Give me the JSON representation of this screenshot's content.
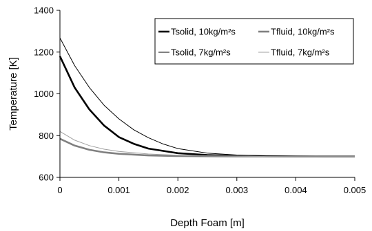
{
  "chart_data": {
    "type": "line",
    "xlabel": "Depth Foam  [m]",
    "ylabel": "Temperature [K]",
    "xlim": [
      0,
      0.005
    ],
    "ylim": [
      600,
      1400
    ],
    "xticks": [
      0,
      0.001,
      0.002,
      0.003,
      0.004,
      0.005
    ],
    "xtick_labels": [
      "0",
      "0.001",
      "0.002",
      "0.003",
      "0.004",
      "0.005"
    ],
    "yticks": [
      600,
      800,
      1000,
      1200,
      1400
    ],
    "ytick_labels": [
      "600",
      "800",
      "1000",
      "1200",
      "1400"
    ],
    "grid": false,
    "legend": "top-right",
    "series": [
      {
        "name": "Tsolid, 10kg/m²s",
        "color": "#000000",
        "style": "thick",
        "x": [
          0,
          0.00025,
          0.0005,
          0.00075,
          0.001,
          0.00125,
          0.0015,
          0.002,
          0.0025,
          0.003,
          0.0035,
          0.004,
          0.0045,
          0.005
        ],
        "y": [
          1180,
          1030,
          925,
          848,
          793,
          761,
          738,
          716,
          707,
          703,
          701,
          700,
          700,
          700
        ]
      },
      {
        "name": "Tfluid, 10kg/m²s",
        "color": "#808080",
        "style": "thick",
        "x": [
          0,
          0.00025,
          0.0005,
          0.00075,
          0.001,
          0.0015,
          0.002,
          0.0025,
          0.003,
          0.0035,
          0.004,
          0.0045,
          0.005
        ],
        "y": [
          785,
          752,
          732,
          720,
          713,
          705,
          702,
          701,
          700,
          700,
          700,
          700,
          700
        ]
      },
      {
        "name": "Tsolid, 7kg/m²s",
        "color": "#000000",
        "style": "thin",
        "x": [
          0,
          0.00025,
          0.0005,
          0.00075,
          0.001,
          0.00125,
          0.0015,
          0.00175,
          0.002,
          0.0025,
          0.003,
          0.0035,
          0.004,
          0.0045,
          0.005
        ],
        "y": [
          1268,
          1135,
          1030,
          945,
          880,
          828,
          790,
          760,
          738,
          716,
          707,
          703,
          701,
          700,
          700
        ]
      },
      {
        "name": "Tfluid, 7kg/m²s",
        "color": "#a0a0a0",
        "style": "thin",
        "x": [
          0,
          0.00025,
          0.0005,
          0.00075,
          0.001,
          0.0015,
          0.002,
          0.0025,
          0.003,
          0.0035,
          0.004,
          0.0045,
          0.005
        ],
        "y": [
          820,
          778,
          752,
          735,
          724,
          712,
          706,
          703,
          701,
          700,
          700,
          700,
          700
        ]
      }
    ]
  }
}
